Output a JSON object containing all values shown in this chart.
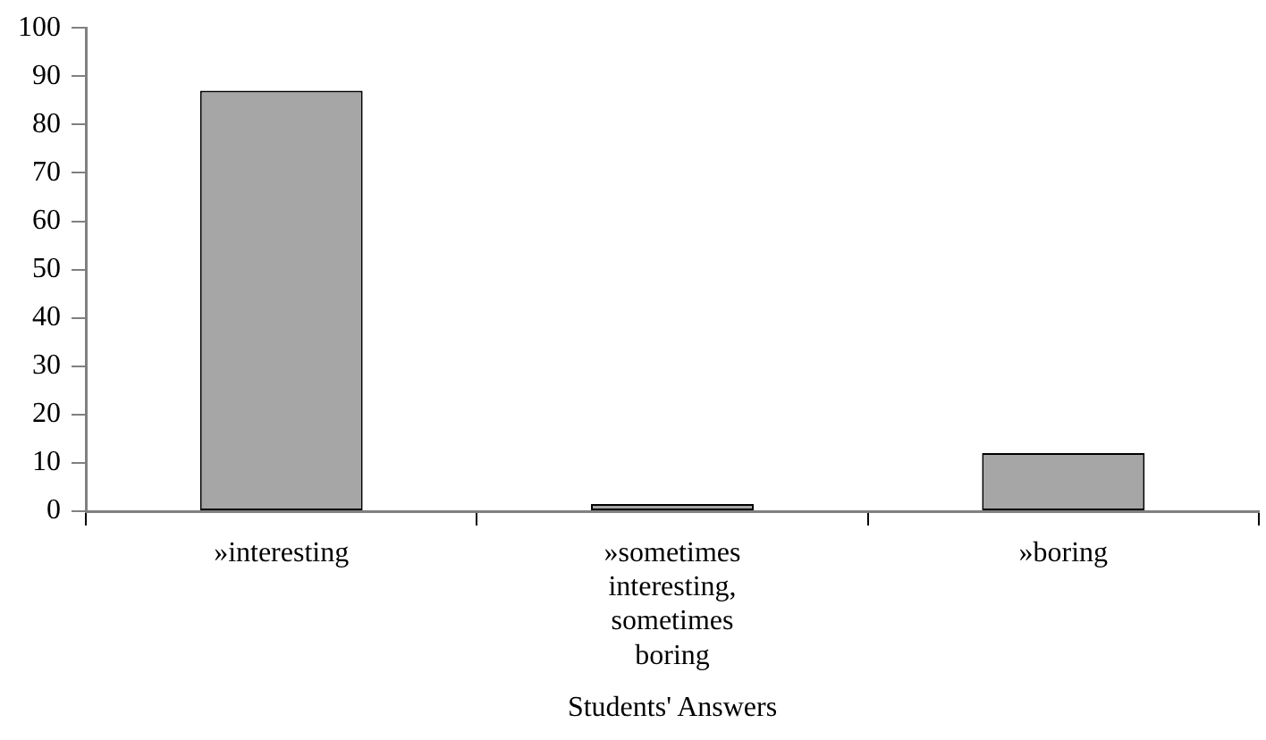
{
  "chart_data": {
    "type": "bar",
    "xlabel": "Students' Answers",
    "categories": [
      "»interesting",
      "»sometimes interesting, sometimes boring",
      "»boring"
    ],
    "values": [
      87,
      1.5,
      12
    ],
    "color": "#a6a6a6",
    "ylim": [
      0,
      100
    ],
    "yticks": [
      0,
      10,
      20,
      30,
      40,
      50,
      60,
      70,
      80,
      90,
      100
    ],
    "grid": false,
    "legend": false
  }
}
